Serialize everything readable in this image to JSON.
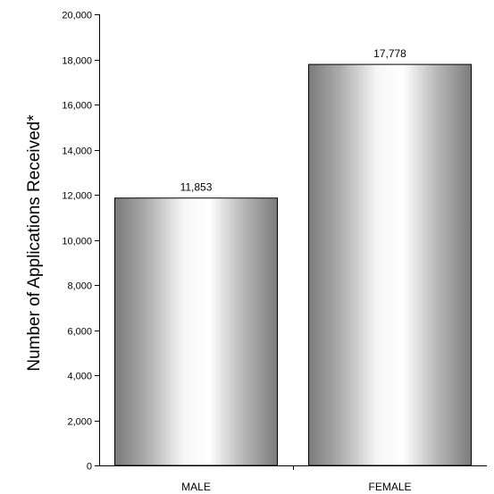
{
  "chart_data": {
    "type": "bar",
    "title": "",
    "xlabel": "",
    "ylabel": "Number of Applications Received*",
    "categories": [
      "MALE",
      "FEMALE"
    ],
    "values": [
      11853,
      17778
    ],
    "data_labels": [
      "11,853",
      "17,778"
    ],
    "ylim": [
      0,
      20000
    ],
    "yticks": [
      0,
      2000,
      4000,
      6000,
      8000,
      10000,
      12000,
      14000,
      16000,
      18000,
      20000
    ],
    "ytick_labels": [
      "0",
      "2,000",
      "4,000",
      "6,000",
      "8,000",
      "10,000",
      "12,000",
      "14,000",
      "16,000",
      "18,000",
      "20,000"
    ],
    "grid": false,
    "legend": "none",
    "bar_style": "gray cylindrical gradient"
  }
}
